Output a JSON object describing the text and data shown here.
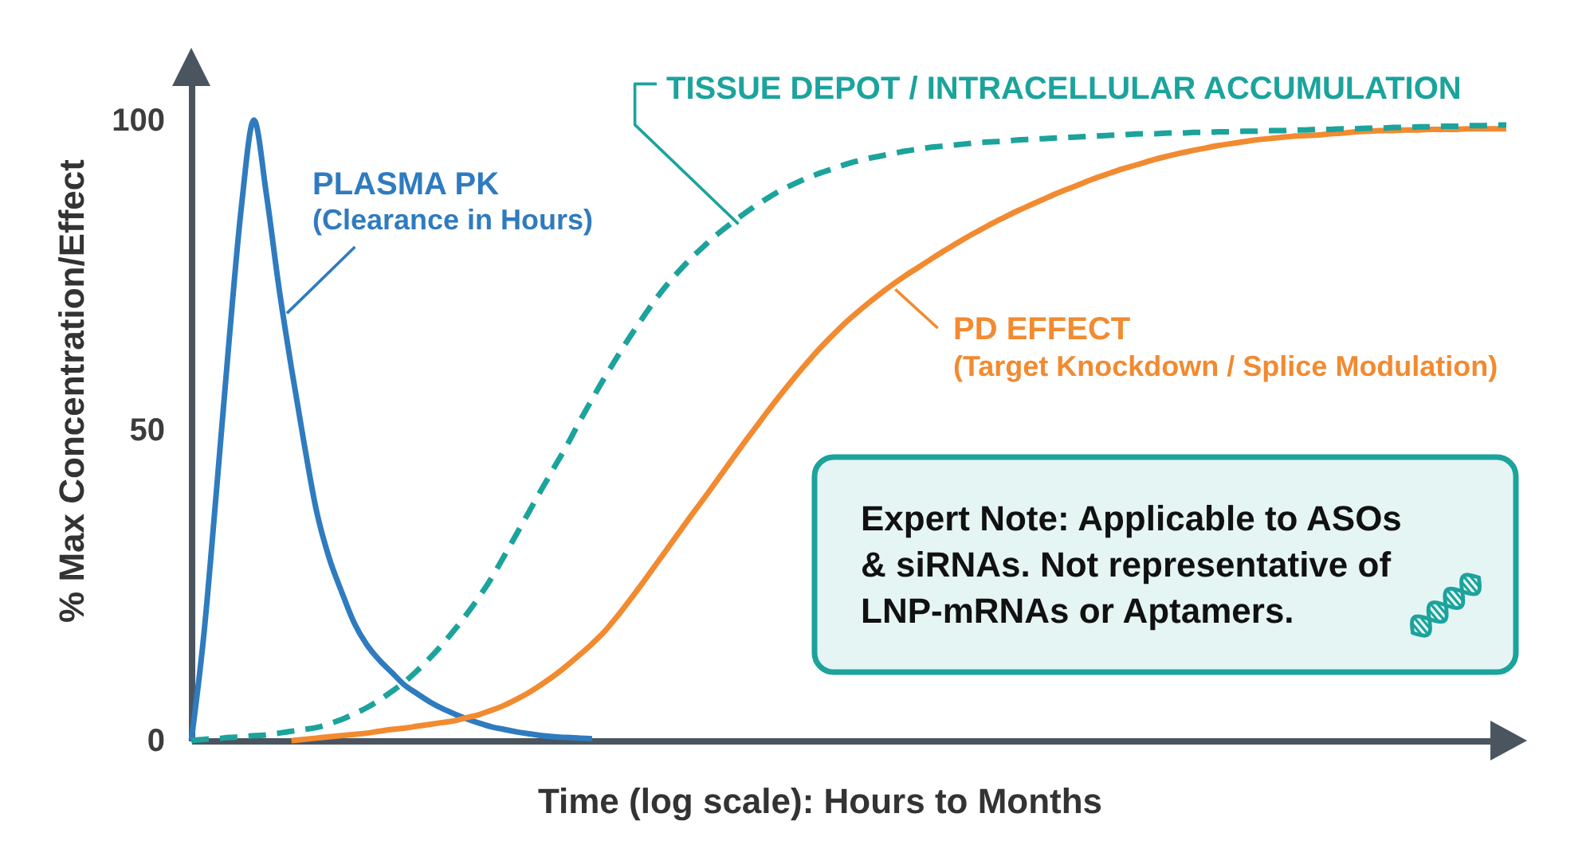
{
  "chart_data": {
    "type": "line",
    "categories": [
      null,
      null,
      null,
      null,
      null,
      null,
      null,
      null,
      null,
      null,
      null,
      null,
      null,
      null,
      null,
      null,
      null,
      null,
      null,
      null,
      null,
      null,
      null,
      null,
      null,
      null,
      null,
      null,
      null,
      null,
      null,
      null,
      null,
      null,
      null,
      null,
      null,
      null,
      null,
      null,
      null,
      null,
      null,
      null,
      null,
      null,
      null,
      null,
      null,
      null,
      null,
      null,
      null,
      null,
      null,
      null,
      null,
      null,
      null,
      null,
      null,
      null,
      null,
      null,
      null,
      null,
      null,
      null,
      null,
      null,
      null,
      null,
      null,
      null,
      null,
      null,
      null,
      null,
      null,
      null,
      null,
      null,
      null,
      null,
      null,
      null,
      null,
      null,
      null,
      null,
      null,
      null,
      null,
      null,
      null,
      null,
      null,
      null,
      null,
      null,
      null,
      null,
      null,
      null,
      null,
      null
    ],
    "xlabel": "Time (log scale): Hours to Months",
    "ylabel": "% Max Concentration/Effect",
    "ylim": [
      0,
      106
    ],
    "yticks": [
      0,
      50,
      100
    ],
    "tick_labels": "y",
    "series": [
      {
        "name": "PLASMA PK",
        "color": "#2f7bbf",
        "values": [
          0,
          17,
          40,
          64,
          86,
          100,
          88,
          73,
          60,
          48,
          37,
          29.5,
          24,
          19,
          15.5,
          13,
          11,
          9,
          7.6,
          6.3,
          5.2,
          4.3,
          3.5,
          2.8,
          2.2,
          1.8,
          1.4,
          1.1,
          0.8,
          0.6,
          0.5,
          0.4,
          0.3,
          null,
          null,
          null,
          null,
          null,
          null,
          null,
          null,
          null,
          null,
          null,
          null,
          null,
          null,
          null,
          null,
          null,
          null,
          null,
          null,
          null,
          null,
          null,
          null,
          null,
          null,
          null,
          null,
          null,
          null,
          null,
          null,
          null,
          null,
          null,
          null,
          null,
          null,
          null,
          null,
          null,
          null,
          null,
          null,
          null,
          null,
          null,
          null,
          null,
          null,
          null,
          null,
          null,
          null,
          null,
          null,
          null,
          null,
          null,
          null,
          null,
          null,
          null,
          null,
          null,
          null,
          null,
          null,
          null,
          null,
          null,
          null,
          null
        ]
      },
      {
        "name": "TISSUE DEPOT / INTRACELLULAR ACCUMULATION",
        "color": "#1ba39c",
        "line_style": "dashed",
        "values": [
          0,
          0.2,
          0.3,
          0.5,
          0.6,
          0.8,
          0.9,
          1.2,
          1.5,
          1.8,
          2.1,
          2.7,
          3.4,
          4.3,
          5.3,
          6.5,
          7.9,
          9.4,
          11.2,
          13.2,
          15.4,
          17.8,
          20.4,
          23.2,
          26.3,
          29.8,
          33.4,
          37,
          40.6,
          44.1,
          47.6,
          51.4,
          55,
          58.5,
          61.8,
          65,
          68,
          70.9,
          73.5,
          75.8,
          77.9,
          79.8,
          81.6,
          83.2,
          84.7,
          86.1,
          87.4,
          88.6,
          89.6,
          90.5,
          91.3,
          92,
          92.7,
          93.3,
          93.8,
          94.2,
          94.6,
          95,
          95.3,
          95.6,
          95.8,
          96,
          96.2,
          96.4,
          96.5,
          96.6,
          96.8,
          96.9,
          97,
          97.1,
          97.2,
          97.3,
          97.4,
          97.5,
          97.6,
          97.7,
          97.8,
          97.8,
          97.9,
          97.9,
          98,
          98,
          98.1,
          98.1,
          98.2,
          98.2,
          98.3,
          98.3,
          98.4,
          98.4,
          98.5,
          98.5,
          98.6,
          98.6,
          98.7,
          98.7,
          98.8,
          98.8,
          98.9,
          98.9,
          99,
          99,
          99.1,
          99.1,
          99.2,
          99.2
        ]
      },
      {
        "name": "PD EFFECT",
        "color": "#f28a30",
        "values": [
          null,
          null,
          null,
          null,
          null,
          null,
          null,
          null,
          0,
          0.2,
          0.4,
          0.6,
          0.8,
          1,
          1.2,
          1.5,
          1.8,
          2,
          2.3,
          2.6,
          2.9,
          3.2,
          3.7,
          4.2,
          4.9,
          5.7,
          6.7,
          7.8,
          9.1,
          10.5,
          12.1,
          13.8,
          15.6,
          17.6,
          20,
          22.6,
          25.3,
          28.1,
          30.9,
          33.7,
          36.5,
          39.2,
          42,
          44.8,
          47.6,
          50.3,
          53,
          55.6,
          58.1,
          60.5,
          62.8,
          64.9,
          66.9,
          68.7,
          70.4,
          72,
          73.5,
          74.9,
          76.2,
          77.5,
          78.8,
          80,
          81.2,
          82.3,
          83.4,
          84.4,
          85.4,
          86.3,
          87.2,
          88.1,
          88.9,
          89.7,
          90.5,
          91.2,
          91.9,
          92.5,
          93.1,
          93.7,
          94.2,
          94.7,
          95.1,
          95.5,
          95.9,
          96.2,
          96.5,
          96.8,
          97,
          97.2,
          97.4,
          97.5,
          97.6,
          97.8,
          97.9,
          98.1,
          98.2,
          98.3,
          98.3,
          98.4,
          98.4,
          98.5,
          98.5,
          98.5,
          98.6,
          98.6,
          98.6,
          98.6
        ]
      }
    ],
    "annotations": [
      "(Clearance in Hours)",
      "(Target Knockdown / Splice Modulation)",
      "Expert Note: Applicable to ASOs & siRNAs. Not representative of LNP-mRNAs or Aptamers."
    ]
  }
}
